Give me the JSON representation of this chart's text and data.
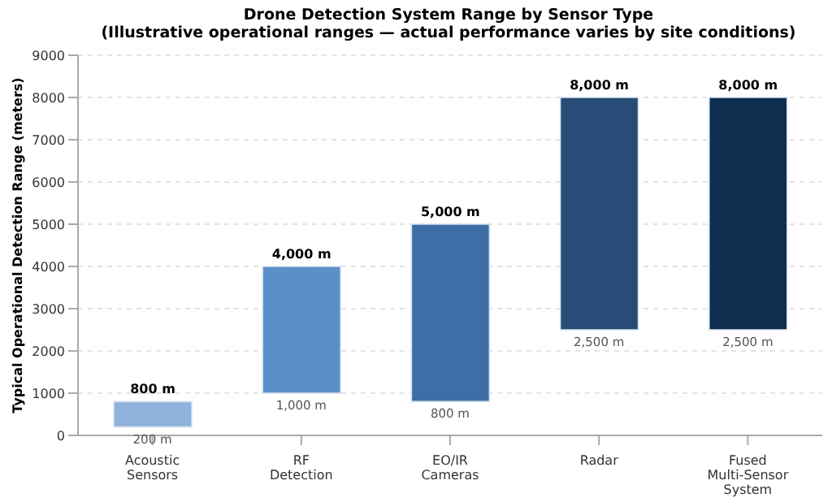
{
  "chart_data": {
    "type": "bar",
    "title": "Drone Detection System Range by Sensor Type",
    "subtitle": "(Illustrative operational ranges — actual performance varies by site conditions)",
    "ylabel": "Typical Operational Detection Range (meters)",
    "categories": [
      "Acoustic Sensors",
      "RF Detection",
      "EO/IR Cameras",
      "Radar",
      "Fused Multi-Sensor System"
    ],
    "base": [
      200,
      1000,
      800,
      2500,
      2500
    ],
    "values": [
      600,
      3000,
      4200,
      5500,
      5500
    ],
    "colors": [
      "#8fb3dc",
      "#5b8fc8",
      "#3d6ea6",
      "#274c78",
      "#0e2d4f"
    ],
    "value_labels": [
      "800 m",
      "4,000 m",
      "5,000 m",
      "8,000 m",
      "8,000 m"
    ],
    "annotations": [
      {
        "text": "200 m",
        "x": "Acoustic Sensors",
        "y": 200
      },
      {
        "text": "1,000 m",
        "x": "RF Detection",
        "y": 1000
      },
      {
        "text": "800 m",
        "x": "EO/IR Cameras",
        "y": 800
      },
      {
        "text": "2,500 m",
        "x": "Radar",
        "y": 2500
      },
      {
        "text": "2,500 m",
        "x": "Fused Multi-Sensor System",
        "y": 2500
      }
    ],
    "ylim": [
      0,
      9000
    ],
    "yticks": [
      0,
      1000,
      2000,
      3000,
      4000,
      5000,
      6000,
      7000,
      8000,
      9000
    ],
    "grid": "y"
  }
}
